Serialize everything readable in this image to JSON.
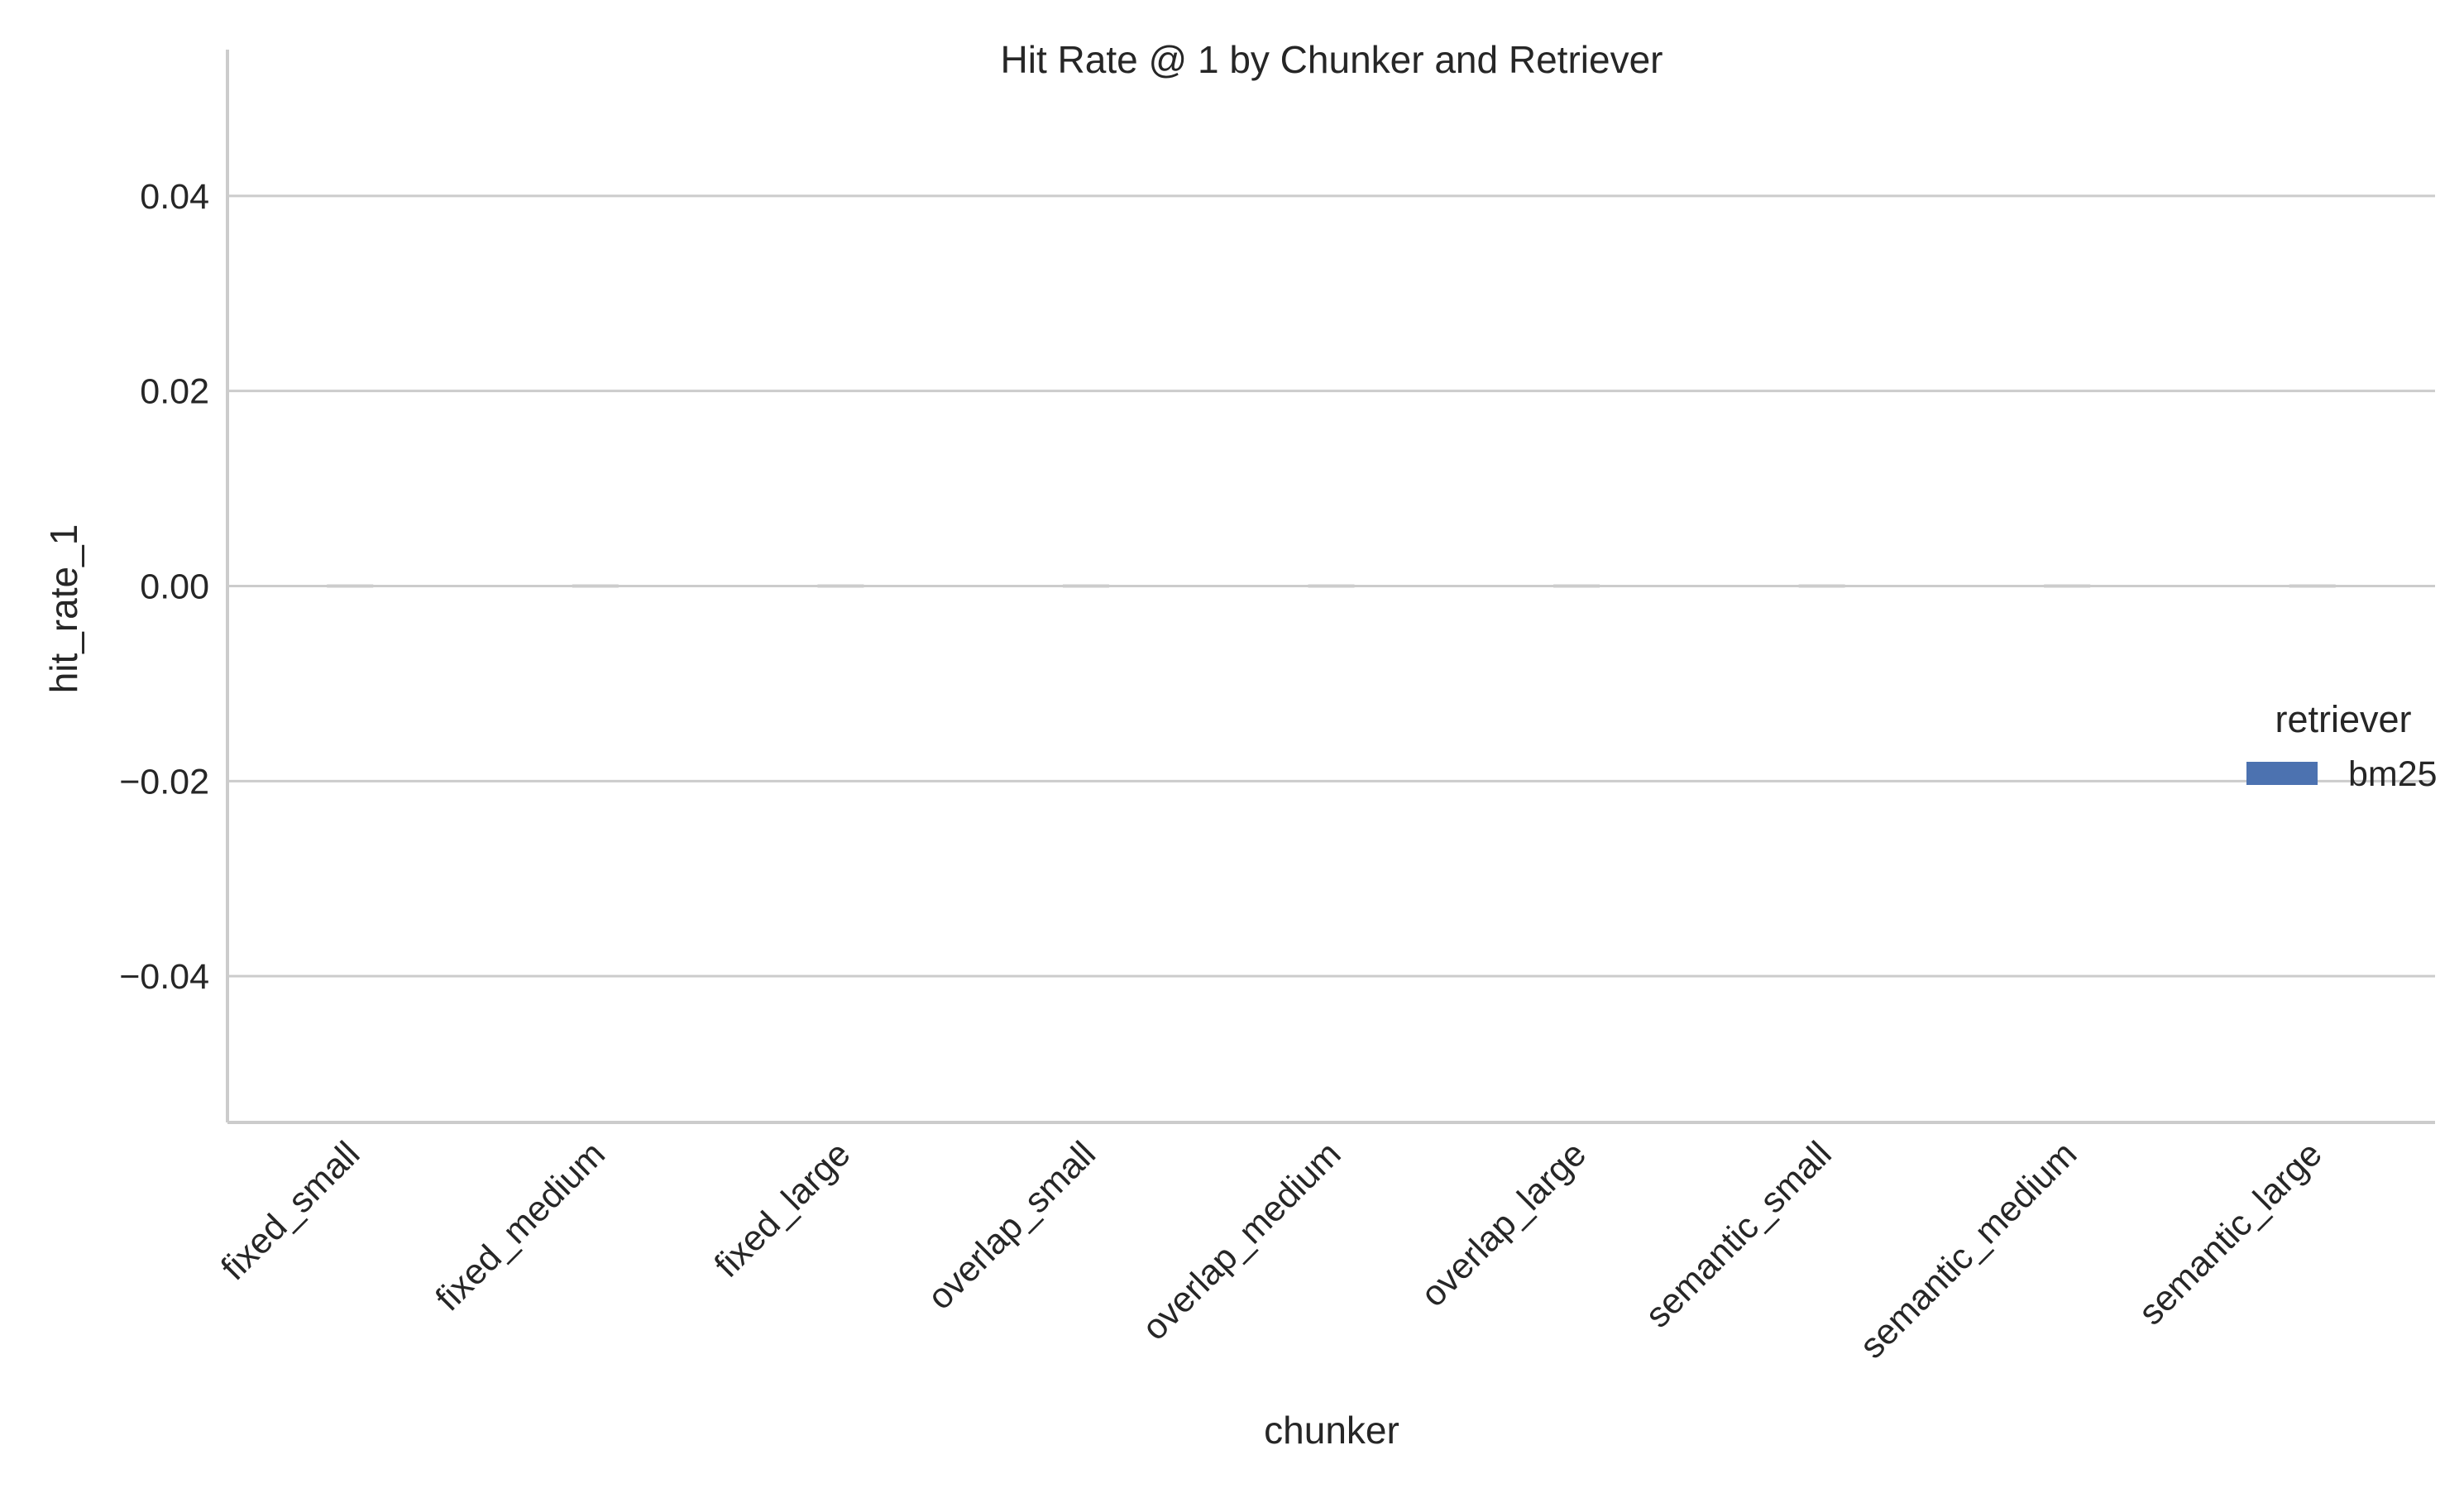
{
  "chart_data": {
    "type": "bar",
    "title": "Hit Rate @ 1 by Chunker and Retriever",
    "xlabel": "chunker",
    "ylabel": "hit_rate_1",
    "categories": [
      "fixed_small",
      "fixed_medium",
      "fixed_large",
      "overlap_small",
      "overlap_medium",
      "overlap_large",
      "semantic_small",
      "semantic_medium",
      "semantic_large"
    ],
    "series": [
      {
        "name": "bm25",
        "color": "#4c72b0",
        "values": [
          0,
          0,
          0,
          0,
          0,
          0,
          0,
          0,
          0
        ]
      }
    ],
    "yticks": [
      0.04,
      0.02,
      0.0,
      -0.02,
      -0.04
    ],
    "ytick_labels": [
      "0.04",
      "0.02",
      "0.00",
      "−0.02",
      "−0.04"
    ],
    "ylim": [
      -0.055,
      0.055
    ],
    "grid": true,
    "legend": {
      "title": "retriever",
      "placement": "right"
    },
    "colors": {
      "grid": "#cccccc",
      "axis": "#cccccc",
      "text": "#262626"
    }
  }
}
